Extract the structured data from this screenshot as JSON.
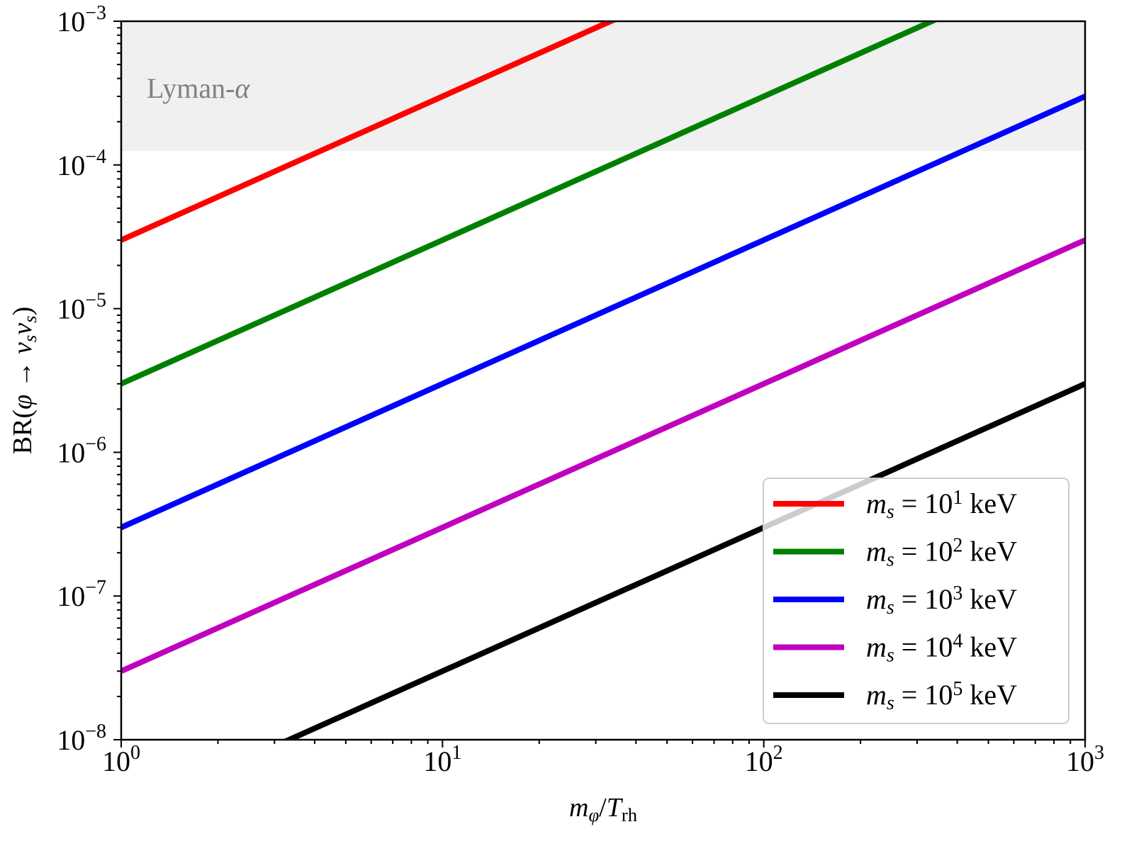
{
  "chart_data": {
    "type": "line",
    "xlabel": "m_{φ}/T_{rh}",
    "ylabel": "BR(φ → ν_{s}ν_{s})",
    "xscale": "log",
    "yscale": "log",
    "xlim": [
      1,
      1000
    ],
    "ylim": [
      1e-08,
      0.001
    ],
    "grid": false,
    "legend_position": "lower-right",
    "x_ticks": [
      {
        "value": 1,
        "base": "10",
        "exp": "0"
      },
      {
        "value": 10,
        "base": "10",
        "exp": "1"
      },
      {
        "value": 100,
        "base": "10",
        "exp": "2"
      },
      {
        "value": 1000,
        "base": "10",
        "exp": "3"
      }
    ],
    "y_ticks": [
      {
        "value": 0.001,
        "base": "10",
        "exp": "−3"
      },
      {
        "value": 0.0001,
        "base": "10",
        "exp": "−4"
      },
      {
        "value": 1e-05,
        "base": "10",
        "exp": "−5"
      },
      {
        "value": 1e-06,
        "base": "10",
        "exp": "−6"
      },
      {
        "value": 1e-07,
        "base": "10",
        "exp": "−7"
      },
      {
        "value": 1e-08,
        "base": "10",
        "exp": "−8"
      }
    ],
    "shaded_region": {
      "label": "Lyman-α",
      "y_range": [
        0.000125,
        0.001
      ],
      "color": "#f0f0f0",
      "label_color": "#808080"
    },
    "series": [
      {
        "name": "m_{s} = 10^{1} keV",
        "color": "#ff0000",
        "x": [
          1,
          1000
        ],
        "y": [
          3e-05,
          0.03
        ]
      },
      {
        "name": "m_{s} = 10^{2} keV",
        "color": "#008000",
        "x": [
          1,
          1000
        ],
        "y": [
          3e-06,
          0.003
        ]
      },
      {
        "name": "m_{s} = 10^{3} keV",
        "color": "#0000ff",
        "x": [
          1,
          1000
        ],
        "y": [
          3e-07,
          0.0003
        ]
      },
      {
        "name": "m_{s} = 10^{4} keV",
        "color": "#bf00bf",
        "x": [
          1,
          1000
        ],
        "y": [
          3e-08,
          3e-05
        ]
      },
      {
        "name": "m_{s} = 10^{5} keV",
        "color": "#000000",
        "x": [
          1,
          1000
        ],
        "y": [
          3e-09,
          3e-06
        ]
      }
    ]
  }
}
